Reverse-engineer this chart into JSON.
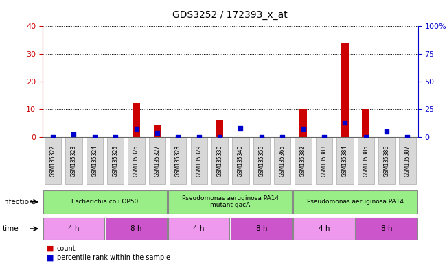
{
  "title": "GDS3252 / 172393_x_at",
  "samples": [
    "GSM135322",
    "GSM135323",
    "GSM135324",
    "GSM135325",
    "GSM135326",
    "GSM135327",
    "GSM135328",
    "GSM135329",
    "GSM135330",
    "GSM135340",
    "GSM135355",
    "GSM135365",
    "GSM135382",
    "GSM135383",
    "GSM135384",
    "GSM135385",
    "GSM135386",
    "GSM135387"
  ],
  "count_values": [
    0,
    0,
    0,
    0,
    12,
    4.5,
    0,
    0,
    6,
    0,
    0,
    0,
    10,
    0,
    34,
    10,
    0,
    0
  ],
  "percentile_values": [
    0,
    2,
    0,
    0,
    7,
    3.5,
    0,
    0,
    0,
    8,
    0,
    0,
    7,
    0,
    13,
    0,
    4.5,
    0
  ],
  "ylim_left": [
    0,
    40
  ],
  "ylim_right": [
    0,
    100
  ],
  "yticks_left": [
    0,
    10,
    20,
    30,
    40
  ],
  "yticks_right": [
    0,
    25,
    50,
    75,
    100
  ],
  "ytick_labels_right": [
    "0",
    "25",
    "50",
    "75",
    "100%"
  ],
  "bar_color": "#cc0000",
  "dot_color": "#0000cc",
  "inf_color": "#99ee88",
  "time_color_light": "#ee99ee",
  "time_color_dark": "#cc55cc",
  "legend_count_color": "#cc0000",
  "legend_dot_color": "#0000cc",
  "tick_color_left": "#cc0000",
  "tick_color_right": "#0000cc",
  "bar_width": 0.35,
  "dot_size": 18,
  "xtick_bg": "#cccccc"
}
